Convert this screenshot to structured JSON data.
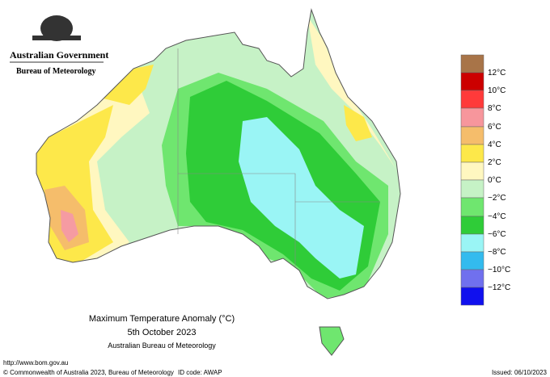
{
  "header": {
    "government": "Australian Government",
    "bureau": "Bureau of Meteorology"
  },
  "legend": {
    "labels": [
      "12°C",
      "10°C",
      "8°C",
      "6°C",
      "4°C",
      "2°C",
      "0°C",
      "−2°C",
      "−4°C",
      "−6°C",
      "−8°C",
      "−10°C",
      "−12°C"
    ]
  },
  "title": {
    "lines": [
      "Maximum Temperature Anomaly (°C)",
      "5th October 2023",
      "Australian Bureau of Meteorology"
    ]
  },
  "footer": {
    "url": "http://www.bom.gov.au",
    "copyright": "© Commonwealth of Australia 2023, Bureau of Meteorology",
    "id_code": "ID code: AWAP",
    "issued": "Issued: 06/10/2023"
  }
}
